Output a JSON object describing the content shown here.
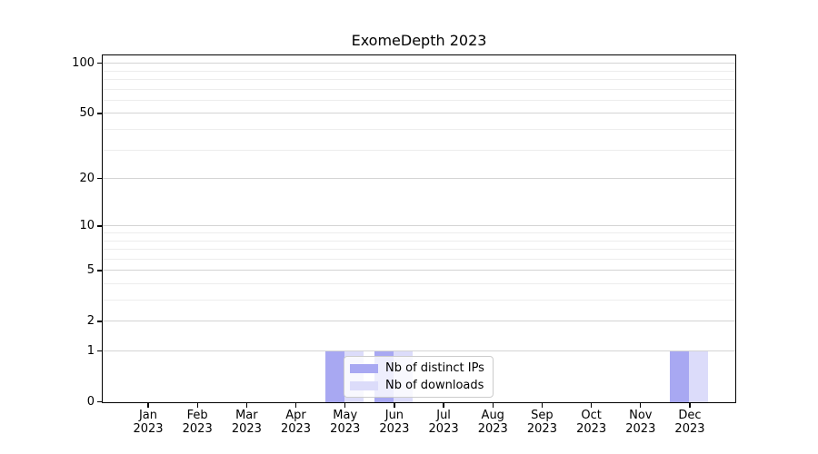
{
  "title": "ExomeDepth 2023",
  "chart_data": {
    "type": "bar",
    "title": "ExomeDepth 2023",
    "categories": [
      "Jan",
      "Feb",
      "Mar",
      "Apr",
      "May",
      "Jun",
      "Jul",
      "Aug",
      "Sep",
      "Oct",
      "Nov",
      "Dec"
    ],
    "x_tick_second_line": "2023",
    "series": [
      {
        "name": "Nb of distinct IPs",
        "color": "#a8a8f2",
        "values": [
          0,
          0,
          0,
          0,
          1,
          1,
          0,
          0,
          0,
          0,
          0,
          1
        ]
      },
      {
        "name": "Nb of downloads",
        "color": "#dcdcfa",
        "values": [
          0,
          0,
          0,
          0,
          1,
          1,
          0,
          0,
          0,
          0,
          0,
          1
        ]
      }
    ],
    "yscale": "log1p",
    "ylim": [
      0,
      113
    ],
    "yticks": [
      0,
      1,
      2,
      5,
      10,
      20,
      50,
      100
    ],
    "minor_yticks": [
      3,
      4,
      6,
      7,
      8,
      9,
      30,
      40,
      60,
      70,
      80,
      90
    ],
    "grid": true,
    "legend_position": "lower center",
    "colors": {
      "grid_major": "#d4d4d4",
      "grid_minor": "#ededed",
      "axis": "#000000",
      "background": "#ffffff",
      "legend_border": "#cccccc"
    }
  }
}
